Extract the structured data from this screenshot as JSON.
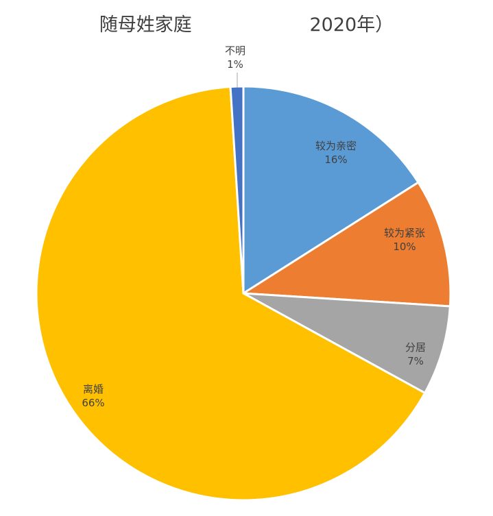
{
  "chart_data": {
    "type": "pie",
    "title": "随母姓家庭                    2020年）",
    "slices": [
      {
        "label": "较为亲密",
        "value": 16,
        "value_label": "16%",
        "color": "#5B9BD5"
      },
      {
        "label": "较为紧张",
        "value": 10,
        "value_label": "10%",
        "color": "#ED7D31"
      },
      {
        "label": "分居",
        "value": 7,
        "value_label": "7%",
        "color": "#A5A5A5"
      },
      {
        "label": "离婚",
        "value": 66,
        "value_label": "66%",
        "color": "#FFC000"
      },
      {
        "label": "不明",
        "value": 1,
        "value_label": "1%",
        "color": "#4472C4"
      }
    ],
    "start": "12 o'clock, clockwise"
  }
}
